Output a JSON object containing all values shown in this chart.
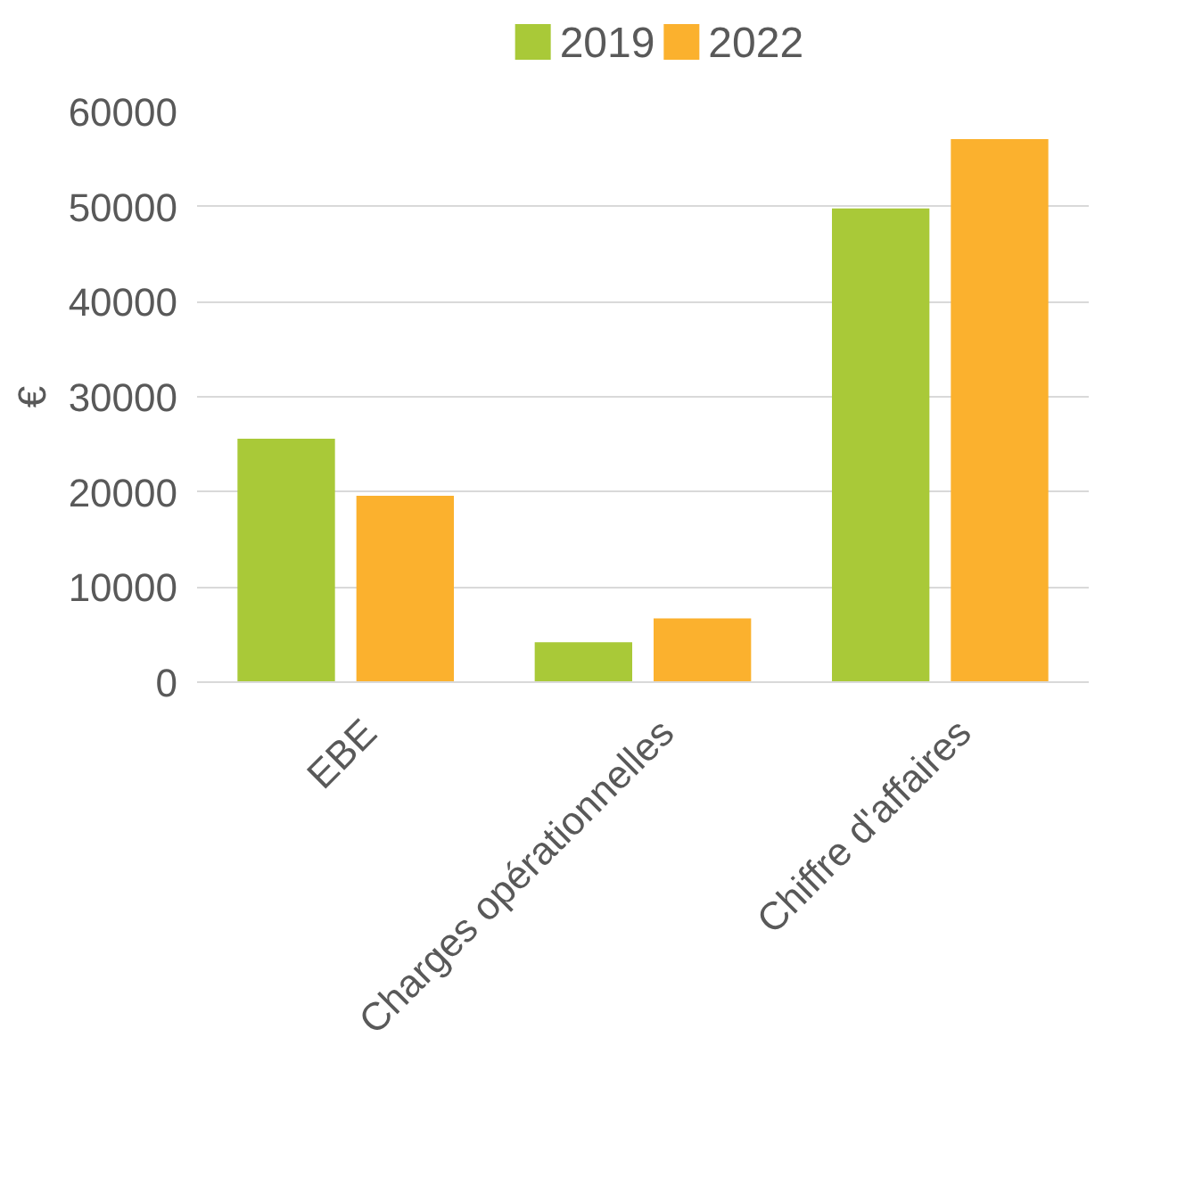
{
  "chart_data": {
    "type": "bar",
    "ylabel": "€",
    "categories": [
      "EBE",
      "Charges opérationnelles",
      "Chiffre d'affaires"
    ],
    "series": [
      {
        "name": "2019",
        "color": "#a9c938",
        "values": [
          25600,
          4200,
          49800
        ]
      },
      {
        "name": "2022",
        "color": "#fbb12e",
        "values": [
          19600,
          6700,
          57100
        ]
      }
    ],
    "ylim": [
      0,
      60000
    ],
    "yticks": [
      0,
      10000,
      20000,
      30000,
      40000,
      50000,
      60000
    ],
    "grid": "y",
    "legend": "top"
  }
}
